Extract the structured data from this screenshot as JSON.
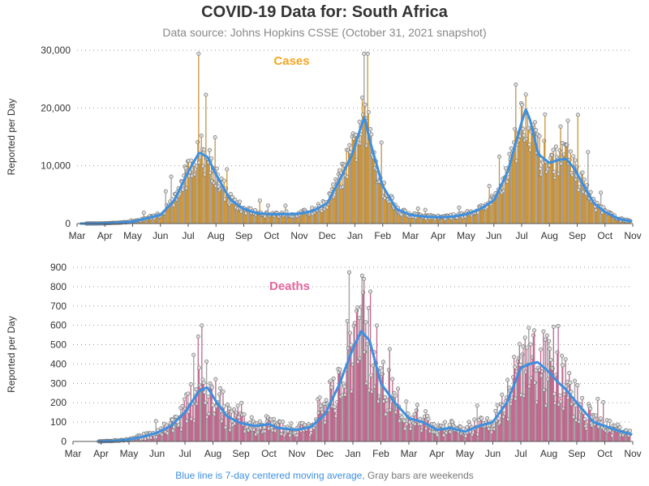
{
  "page": {
    "title": "COVID-19 Data for: South Africa",
    "subtitle": "Data source: Johns Hopkins CSSE (October 31, 2021 snapshot)",
    "footnote_avg": "Blue line is 7-day centered moving average,",
    "footnote_weekend": "Gray bars are weekends"
  },
  "colors": {
    "cases": "#f5a623",
    "deaths": "#e8669f",
    "average": "#3d8fe0",
    "grid": "#999999",
    "marker_fill": "#dddddd"
  },
  "chart_data": [
    {
      "type": "bar",
      "panel_label": "Cases",
      "ylabel": "Reported per Day",
      "ylim": [
        0,
        30000
      ],
      "yticks": [
        "0",
        "10,000",
        "20,000",
        "30,000"
      ],
      "ytick_values": [
        0,
        10000,
        20000,
        30000
      ],
      "xticks": [
        "Mar",
        "Apr",
        "May",
        "Jun",
        "Jul",
        "Aug",
        "Sep",
        "Oct",
        "Nov",
        "Dec",
        "Jan",
        "Feb",
        "Mar",
        "Apr",
        "May",
        "Jun",
        "Jul",
        "Aug",
        "Sep",
        "Oct",
        "Nov"
      ],
      "x_unit": "month since Mar 2020",
      "grid": "horizontal dotted",
      "series_markers": "circles on bar tops",
      "avg_keyframes": [
        [
          0.1,
          0
        ],
        [
          1,
          30
        ],
        [
          2,
          300
        ],
        [
          3,
          1500
        ],
        [
          3.5,
          4000
        ],
        [
          4,
          9000
        ],
        [
          4.4,
          12300
        ],
        [
          4.7,
          11500
        ],
        [
          5,
          8500
        ],
        [
          5.5,
          4200
        ],
        [
          6,
          2500
        ],
        [
          6.5,
          1800
        ],
        [
          7,
          1600
        ],
        [
          8,
          1700
        ],
        [
          8.5,
          2200
        ],
        [
          9,
          3500
        ],
        [
          9.5,
          8000
        ],
        [
          9.9,
          12000
        ],
        [
          10.2,
          16500
        ],
        [
          10.35,
          18500
        ],
        [
          10.5,
          15000
        ],
        [
          11,
          6500
        ],
        [
          11.5,
          2500
        ],
        [
          12,
          1500
        ],
        [
          12.5,
          1200
        ],
        [
          13,
          1100
        ],
        [
          13.5,
          1200
        ],
        [
          14,
          1600
        ],
        [
          14.5,
          2500
        ],
        [
          15,
          4000
        ],
        [
          15.5,
          9000
        ],
        [
          16,
          17500
        ],
        [
          16.15,
          19800
        ],
        [
          16.3,
          18000
        ],
        [
          16.6,
          12000
        ],
        [
          17,
          10500
        ],
        [
          17.3,
          11000
        ],
        [
          17.6,
          11200
        ],
        [
          17.9,
          9500
        ],
        [
          18.3,
          6000
        ],
        [
          18.6,
          3500
        ],
        [
          19,
          2000
        ],
        [
          19.5,
          800
        ],
        [
          20,
          350
        ]
      ]
    },
    {
      "type": "bar",
      "panel_label": "Deaths",
      "ylabel": "Reported per Day",
      "ylim": [
        0,
        900
      ],
      "yticks": [
        "0",
        "100",
        "200",
        "300",
        "400",
        "500",
        "600",
        "700",
        "800",
        "900"
      ],
      "ytick_values": [
        0,
        100,
        200,
        300,
        400,
        500,
        600,
        700,
        800,
        900
      ],
      "xticks": [
        "Mar",
        "Apr",
        "May",
        "Jun",
        "Jul",
        "Aug",
        "Sep",
        "Oct",
        "Nov",
        "Dec",
        "Jan",
        "Feb",
        "Mar",
        "Apr",
        "May",
        "Jun",
        "Jul",
        "Aug",
        "Sep",
        "Oct",
        "Nov"
      ],
      "x_unit": "month since Mar 2020",
      "grid": "horizontal dotted",
      "series_markers": "circles on bar tops",
      "avg_keyframes": [
        [
          0.9,
          0
        ],
        [
          1.5,
          3
        ],
        [
          2,
          10
        ],
        [
          2.5,
          25
        ],
        [
          3,
          45
        ],
        [
          3.5,
          80
        ],
        [
          4,
          150
        ],
        [
          4.5,
          260
        ],
        [
          4.8,
          280
        ],
        [
          5.1,
          210
        ],
        [
          5.5,
          130
        ],
        [
          6,
          95
        ],
        [
          6.5,
          80
        ],
        [
          7,
          90
        ],
        [
          7.3,
          70
        ],
        [
          8,
          60
        ],
        [
          8.5,
          75
        ],
        [
          9,
          140
        ],
        [
          9.5,
          290
        ],
        [
          10,
          480
        ],
        [
          10.3,
          570
        ],
        [
          10.6,
          520
        ],
        [
          11,
          300
        ],
        [
          11.5,
          200
        ],
        [
          12,
          120
        ],
        [
          12.5,
          100
        ],
        [
          13,
          60
        ],
        [
          13.5,
          70
        ],
        [
          14,
          50
        ],
        [
          14.5,
          80
        ],
        [
          15,
          100
        ],
        [
          15.5,
          200
        ],
        [
          16,
          380
        ],
        [
          16.3,
          400
        ],
        [
          16.6,
          410
        ],
        [
          17,
          360
        ],
        [
          17.3,
          310
        ],
        [
          17.6,
          270
        ],
        [
          18,
          200
        ],
        [
          18.3,
          150
        ],
        [
          18.6,
          100
        ],
        [
          19,
          80
        ],
        [
          19.5,
          55
        ],
        [
          20,
          35
        ]
      ]
    }
  ]
}
